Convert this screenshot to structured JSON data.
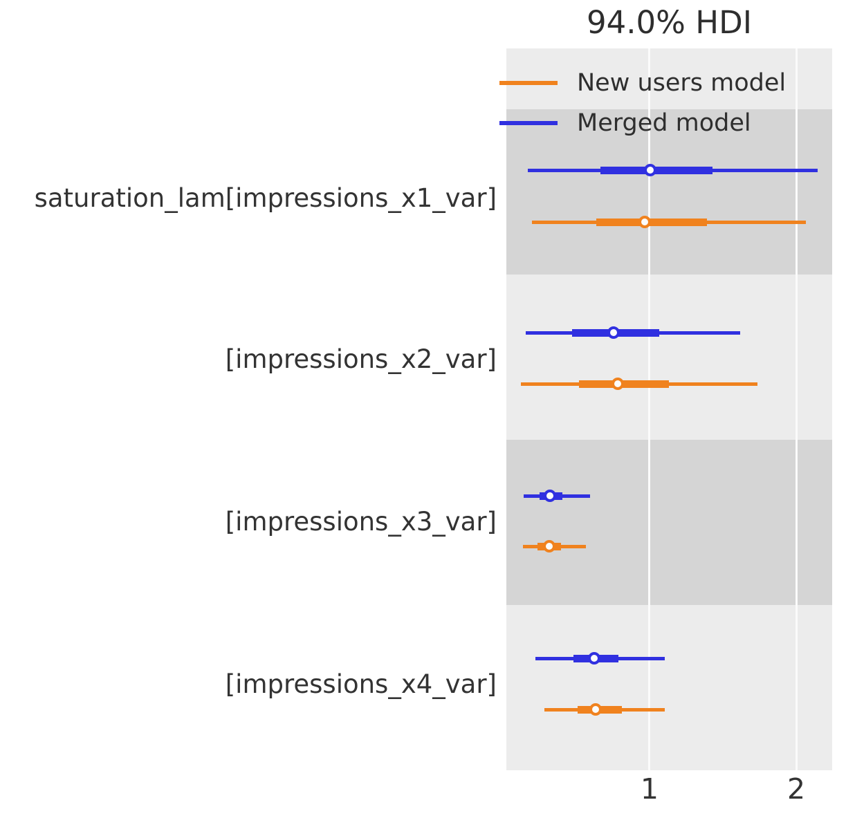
{
  "chart_data": {
    "type": "forest",
    "title": "94.0% HDI",
    "hdi_prob": 0.94,
    "xlabel": "",
    "ylabel": "",
    "xlim": [
      0.024,
      2.245
    ],
    "x_ticks": [
      {
        "value": 1,
        "label": "1"
      },
      {
        "value": 2,
        "label": "2"
      }
    ],
    "grid": "vertical-white-on-gray",
    "legend_position": "top-inside",
    "band_colors": {
      "dark": "#d5d5d5",
      "light": "#ececec"
    },
    "variables": [
      "saturation_lam[impressions_x1_var]",
      "[impressions_x2_var]",
      "[impressions_x3_var]",
      "[impressions_x4_var]"
    ],
    "series": [
      {
        "name": "Merged model",
        "color": "#3030e0",
        "rows": [
          {
            "variable": "saturation_lam[impressions_x1_var]",
            "hdi_low": 0.17,
            "q25": 0.665,
            "median": 1.005,
            "q75": 1.43,
            "hdi_high": 2.146
          },
          {
            "variable": "[impressions_x2_var]",
            "hdi_low": 0.156,
            "q25": 0.472,
            "median": 0.755,
            "q75": 1.066,
            "hdi_high": 1.618
          },
          {
            "variable": "[impressions_x3_var]",
            "hdi_low": 0.142,
            "q25": 0.25,
            "median": 0.321,
            "q75": 0.406,
            "hdi_high": 0.594
          },
          {
            "variable": "[impressions_x4_var]",
            "hdi_low": 0.222,
            "q25": 0.481,
            "median": 0.623,
            "q75": 0.788,
            "hdi_high": 1.104
          }
        ]
      },
      {
        "name": "New users model",
        "color": "#f0821e",
        "rows": [
          {
            "variable": "saturation_lam[impressions_x1_var]",
            "hdi_low": 0.198,
            "q25": 0.637,
            "median": 0.967,
            "q75": 1.392,
            "hdi_high": 2.066
          },
          {
            "variable": "[impressions_x2_var]",
            "hdi_low": 0.123,
            "q25": 0.519,
            "median": 0.783,
            "q75": 1.132,
            "hdi_high": 1.736
          },
          {
            "variable": "[impressions_x3_var]",
            "hdi_low": 0.137,
            "q25": 0.236,
            "median": 0.316,
            "q75": 0.396,
            "hdi_high": 0.566
          },
          {
            "variable": "[impressions_x4_var]",
            "hdi_low": 0.283,
            "q25": 0.509,
            "median": 0.632,
            "q75": 0.811,
            "hdi_high": 1.104
          }
        ]
      }
    ],
    "legend": [
      {
        "label": "New users model",
        "color": "#f0821e"
      },
      {
        "label": "Merged model",
        "color": "#3030e0"
      }
    ]
  }
}
